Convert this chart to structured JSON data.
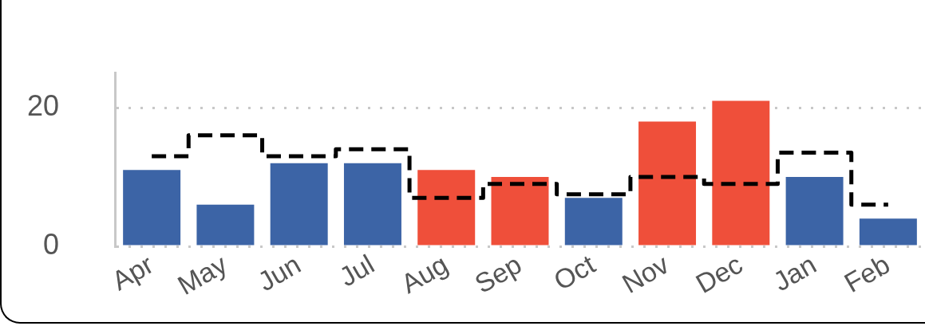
{
  "chart_data": {
    "type": "bar",
    "categories": [
      "Apr",
      "May",
      "Jun",
      "Jul",
      "Aug",
      "Sep",
      "Oct",
      "Nov",
      "Dec",
      "Jan",
      "Feb"
    ],
    "series": [
      {
        "colors": [
          "#3c64a6",
          "#3c64a6",
          "#3c64a6",
          "#3c64a6",
          "#ef4f3a",
          "#ef4f3a",
          "#3c64a6",
          "#ef4f3a",
          "#ef4f3a",
          "#3c64a6",
          "#3c64a6"
        ],
        "values": [
          11,
          6,
          12,
          12,
          11,
          10,
          7,
          18,
          21,
          10,
          4
        ]
      },
      {
        "type": "step",
        "color": "#000000",
        "line_style": "dashed",
        "values": [
          13,
          16,
          13,
          14,
          7,
          9,
          7.5,
          10,
          9,
          13.5,
          6
        ]
      }
    ],
    "ylim": [
      0,
      25
    ],
    "yticks": [
      0,
      20
    ],
    "grid": "y",
    "legend": false
  }
}
